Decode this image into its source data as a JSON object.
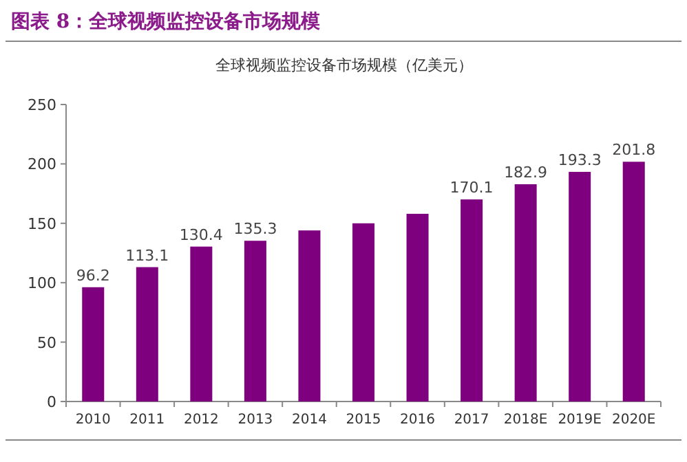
{
  "chart_data": {
    "type": "bar",
    "title": "图表 8：全球视频监控设备市场规模",
    "subtitle": "全球视频监控设备市场规模（亿美元）",
    "categories": [
      "2010",
      "2011",
      "2012",
      "2013",
      "2014",
      "2015",
      "2016",
      "2017",
      "2018E",
      "2019E",
      "2020E"
    ],
    "values": [
      96.2,
      113.1,
      130.4,
      135.3,
      144,
      150,
      158,
      170.1,
      182.9,
      193.3,
      201.8
    ],
    "value_labels": [
      "96.2",
      "113.1",
      "130.4",
      "135.3",
      null,
      null,
      null,
      "170.1",
      "182.9",
      "193.3",
      "201.8"
    ],
    "color": "#7f007f",
    "ylim": [
      0,
      250
    ],
    "yticks": [
      0,
      50,
      100,
      150,
      200,
      250
    ],
    "grid": false
  }
}
